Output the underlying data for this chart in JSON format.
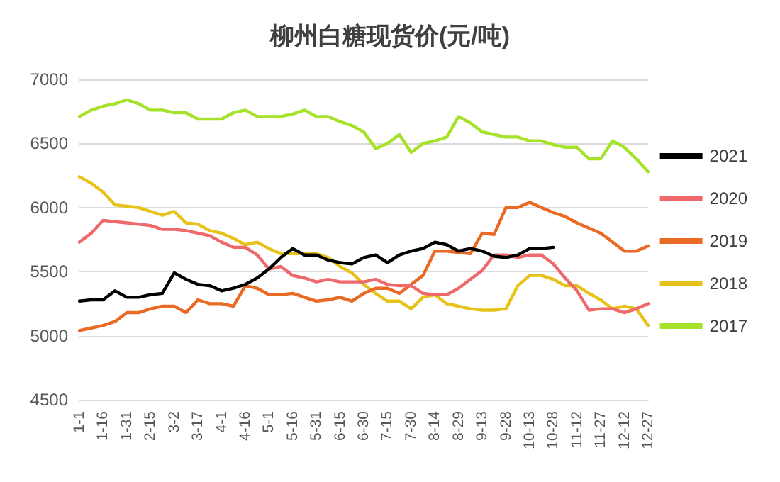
{
  "chart_data": {
    "type": "line",
    "title": "柳州白糖现货价(元/吨)",
    "categories": [
      "1-1",
      null,
      "1-16",
      null,
      "1-31",
      null,
      "2-15",
      null,
      "3-2",
      null,
      "3-17",
      null,
      "4-1",
      null,
      "4-16",
      null,
      "5-1",
      null,
      "5-16",
      null,
      "5-31",
      null,
      "6-15",
      null,
      "6-30",
      null,
      "7-15",
      null,
      "7-30",
      null,
      "8-14",
      null,
      "8-29",
      null,
      "9-13",
      null,
      "9-28",
      null,
      "10-13",
      null,
      "10-28",
      null,
      "11-12",
      null,
      "11-27",
      null,
      "12-12",
      null,
      "12-27"
    ],
    "series": [
      {
        "name": "2021",
        "color": "#000000",
        "values": [
          5270,
          5280,
          5280,
          5350,
          5300,
          5300,
          5320,
          5330,
          5490,
          5440,
          5400,
          5390,
          5350,
          5370,
          5400,
          5450,
          5520,
          5610,
          5680,
          5630,
          5630,
          5590,
          5570,
          5560,
          5610,
          5630,
          5570,
          5630,
          5660,
          5680,
          5730,
          5710,
          5660,
          5680,
          5660,
          5620,
          5610,
          5630,
          5680,
          5680,
          5690,
          null,
          null,
          null,
          null,
          null,
          null,
          null,
          null
        ]
      },
      {
        "name": "2020",
        "color": "#f0696a",
        "values": [
          5730,
          5800,
          5900,
          5890,
          5880,
          5870,
          5860,
          5830,
          5830,
          5820,
          5800,
          5780,
          5730,
          5690,
          5690,
          5630,
          5520,
          5540,
          5470,
          5450,
          5420,
          5440,
          5420,
          5420,
          5420,
          5440,
          5400,
          5390,
          5390,
          5330,
          5320,
          5320,
          5370,
          5440,
          5510,
          5630,
          5630,
          5610,
          5630,
          5630,
          5560,
          5450,
          5350,
          5200,
          5210,
          5210,
          5180,
          5210,
          5250
        ]
      },
      {
        "name": "2019",
        "color": "#ea6a25",
        "values": [
          5040,
          5060,
          5080,
          5110,
          5180,
          5180,
          5210,
          5230,
          5230,
          5180,
          5280,
          5250,
          5250,
          5230,
          5390,
          5370,
          5320,
          5320,
          5330,
          5300,
          5270,
          5280,
          5300,
          5270,
          5330,
          5370,
          5370,
          5330,
          5400,
          5470,
          5660,
          5660,
          5650,
          5640,
          5800,
          5790,
          6000,
          6000,
          6040,
          6000,
          5960,
          5930,
          5880,
          5840,
          5800,
          5730,
          5660,
          5660,
          5700
        ]
      },
      {
        "name": "2018",
        "color": "#e6c21b",
        "values": [
          6240,
          6190,
          6120,
          6020,
          6010,
          6000,
          5970,
          5940,
          5970,
          5880,
          5870,
          5820,
          5800,
          5760,
          5710,
          5730,
          5680,
          5640,
          5640,
          5640,
          5640,
          5610,
          5540,
          5490,
          5400,
          5330,
          5270,
          5270,
          5210,
          5300,
          5320,
          5250,
          5230,
          5210,
          5200,
          5200,
          5210,
          5390,
          5470,
          5470,
          5440,
          5390,
          5390,
          5330,
          5280,
          5210,
          5230,
          5210,
          5080
        ]
      },
      {
        "name": "2017",
        "color": "#a6e22a",
        "values": [
          6710,
          6760,
          6790,
          6810,
          6840,
          6810,
          6760,
          6760,
          6740,
          6740,
          6690,
          6690,
          6690,
          6740,
          6760,
          6710,
          6710,
          6710,
          6730,
          6760,
          6710,
          6710,
          6670,
          6640,
          6590,
          6460,
          6500,
          6570,
          6430,
          6500,
          6520,
          6550,
          6710,
          6660,
          6590,
          6570,
          6550,
          6550,
          6520,
          6520,
          6490,
          6470,
          6470,
          6380,
          6380,
          6520,
          6470,
          6380,
          6280
        ]
      }
    ],
    "ylim": [
      4500,
      7000
    ],
    "yticks": [
      4500,
      5000,
      5500,
      6000,
      6500,
      7000
    ],
    "grid": "y",
    "legend": "right",
    "marker": "none",
    "line_style": "solid"
  }
}
